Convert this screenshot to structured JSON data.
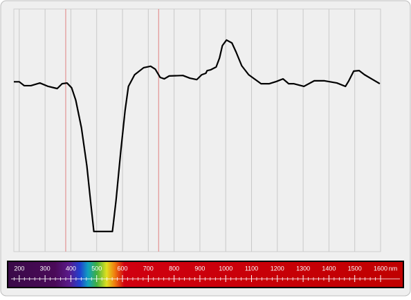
{
  "chart_data": {
    "type": "line",
    "x_unit": "nm",
    "x": [
      179,
      200,
      219,
      245,
      280,
      312,
      347,
      366,
      385,
      403,
      419,
      441,
      462,
      476,
      489,
      561,
      575,
      593,
      610,
      623,
      647,
      682,
      709,
      727,
      746,
      762,
      781,
      834,
      861,
      888,
      907,
      923,
      928,
      941,
      963,
      976,
      987,
      1003,
      1024,
      1040,
      1062,
      1089,
      1137,
      1169,
      1196,
      1222,
      1244,
      1263,
      1303,
      1343,
      1383,
      1431,
      1464,
      1477,
      1496,
      1517,
      1538,
      1565,
      1597
    ],
    "series": [
      {
        "color": "#000000",
        "values": [
          70,
          70,
          68.4,
          68.4,
          69.5,
          68.1,
          67.2,
          69.2,
          69.5,
          67.5,
          62.4,
          51,
          35.3,
          21.1,
          8.3,
          8.3,
          21.1,
          41,
          58.1,
          68.1,
          72.9,
          75.8,
          76.4,
          75.2,
          71.8,
          71.2,
          72.4,
          72.6,
          71.5,
          70.9,
          72.9,
          73.5,
          74.6,
          74.9,
          76.1,
          79.8,
          84.9,
          87.2,
          86,
          82.3,
          76.6,
          72.9,
          69.2,
          69.2,
          70.1,
          71.2,
          69.2,
          69.2,
          68.1,
          70.4,
          70.4,
          69.5,
          68.1,
          70.4,
          74.4,
          74.6,
          72.9,
          71.2,
          69.2
        ]
      }
    ],
    "xlim": [
      179,
      1600
    ],
    "xticks": [
      200,
      300,
      400,
      500,
      600,
      700,
      800,
      900,
      1000,
      1100,
      1200,
      1300,
      1400,
      1500,
      1600
    ],
    "minor_ticks_per_major": 5,
    "ylim": [
      0,
      100
    ],
    "grid": true,
    "markers": {
      "values": [
        380,
        740
      ],
      "color": "#e08080"
    }
  }
}
